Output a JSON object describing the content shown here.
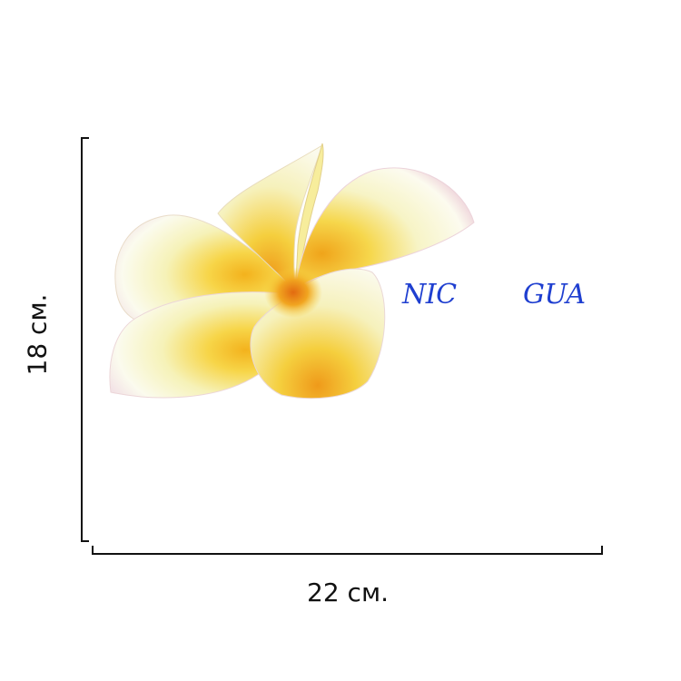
{
  "product": {
    "codes": [
      "NIC",
      "GUA"
    ],
    "code_color": "#1f3fd0",
    "flower": "plumeria-flower",
    "flower_colors": {
      "petal": "#fbfbec",
      "center": "#f7c92a",
      "throat": "#ef8a1a",
      "edge_blush": "#efcfd6"
    }
  },
  "dimensions": {
    "width_label": "22 см.",
    "height_label": "18 см."
  }
}
